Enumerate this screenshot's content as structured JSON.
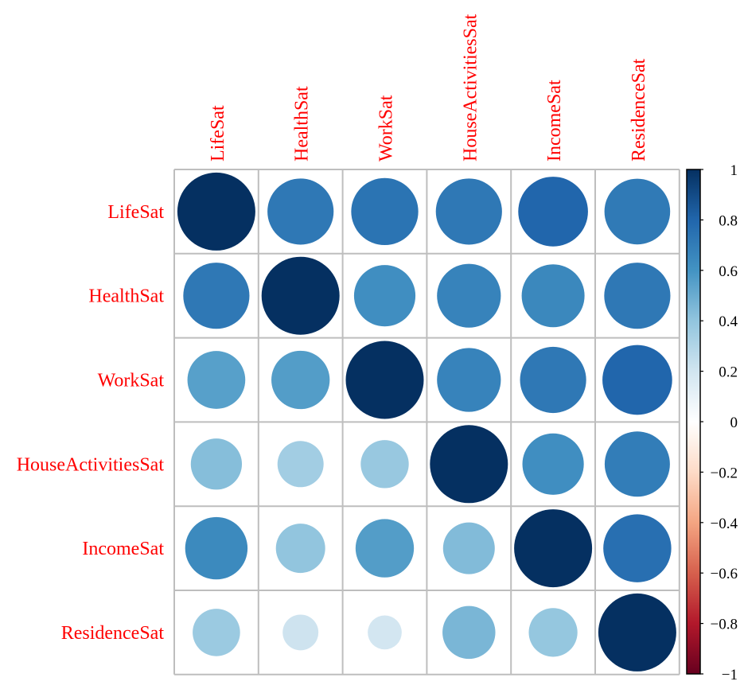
{
  "chart_data": {
    "type": "heatmap",
    "variables": [
      "LifeSat",
      "HealthSat",
      "WorkSat",
      "HouseActivitiesSat",
      "IncomeSat",
      "ResidenceSat"
    ],
    "matrix": [
      [
        1.0,
        0.72,
        0.74,
        0.72,
        0.8,
        0.71
      ],
      [
        0.72,
        1.0,
        0.62,
        0.67,
        0.65,
        0.72
      ],
      [
        0.55,
        0.56,
        1.0,
        0.67,
        0.72,
        0.8
      ],
      [
        0.43,
        0.35,
        0.38,
        1.0,
        0.62,
        0.7
      ],
      [
        0.64,
        0.4,
        0.56,
        0.44,
        1.0,
        0.76
      ],
      [
        0.37,
        0.21,
        0.19,
        0.46,
        0.39,
        1.0
      ]
    ],
    "colorbar": {
      "ticks": [
        "1",
        "0.8",
        "0.6",
        "0.4",
        "0.2",
        "0",
        "−0.2",
        "−0.4",
        "−0.6",
        "−0.8",
        "−1"
      ],
      "range": [
        -1,
        1
      ]
    },
    "label_color": "#ff0000",
    "grid_color": "#bebebe",
    "palette": [
      "#67001f",
      "#b2182b",
      "#d6604d",
      "#f4a582",
      "#fddbc7",
      "#ffffff",
      "#d1e5f0",
      "#92c5de",
      "#4393c3",
      "#2166ac",
      "#053061"
    ]
  }
}
